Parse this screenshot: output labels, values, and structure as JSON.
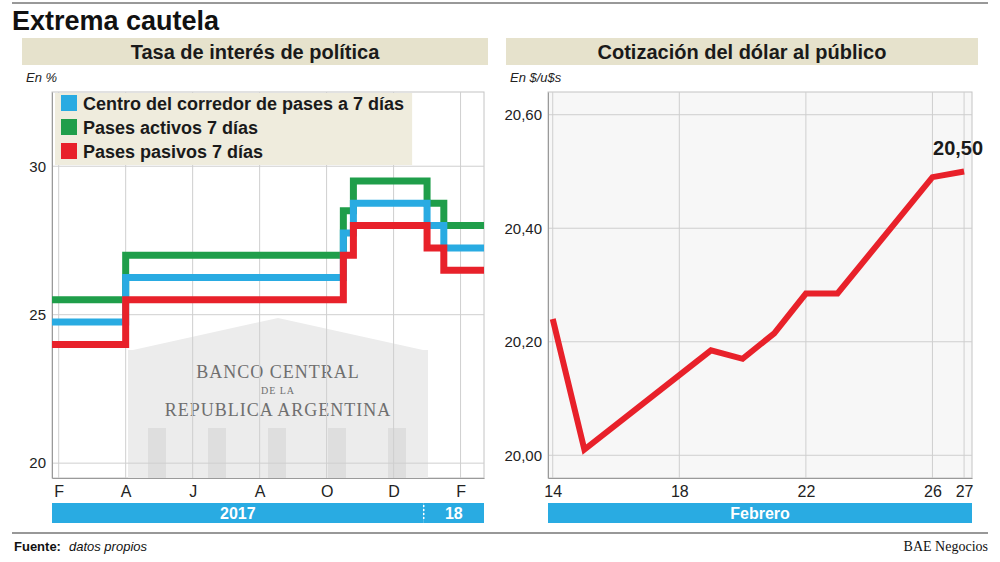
{
  "title": "Extrema cautela",
  "chart_data": [
    {
      "type": "line",
      "title": "Tasa de interés de política",
      "ylabel": "En %",
      "line_style": "step",
      "x": [
        -0.2,
        2,
        8.5,
        8.8,
        11.0,
        11.5,
        12.7
      ],
      "xlim": [
        -0.2,
        12.7
      ],
      "xticks": [
        {
          "value": 0,
          "label": "F"
        },
        {
          "value": 2,
          "label": "A"
        },
        {
          "value": 4,
          "label": "J"
        },
        {
          "value": 6,
          "label": "A"
        },
        {
          "value": 8,
          "label": "O"
        },
        {
          "value": 10,
          "label": "D"
        },
        {
          "value": 12,
          "label": "F"
        }
      ],
      "x_groups": [
        {
          "label": "2017",
          "start": -0.2,
          "end": 10.9
        },
        {
          "label": "18",
          "start": 10.9,
          "end": 12.7
        }
      ],
      "ylim": [
        19.5,
        32.5
      ],
      "yticks": [
        20,
        25,
        30
      ],
      "grid": true,
      "legend": "upper left",
      "background_text": [
        "BANCO CENTRAL",
        "DE LA",
        "REPUBLICA ARGENTINA"
      ],
      "series": [
        {
          "name": "Centro del corredor de pases a 7 días",
          "color": "#29abe2",
          "values": [
            24.75,
            26.25,
            27.75,
            28.75,
            28.0,
            27.25,
            27.25
          ]
        },
        {
          "name": "Pases activos 7 días",
          "color": "#1f9e4a",
          "values": [
            25.5,
            27.0,
            28.5,
            29.5,
            28.75,
            28.0,
            28.0
          ]
        },
        {
          "name": "Pases pasivos 7 días",
          "color": "#e8212a",
          "values": [
            24.0,
            25.5,
            27.0,
            28.0,
            27.25,
            26.5,
            26.5
          ]
        }
      ]
    },
    {
      "type": "line",
      "title": "Cotización del dólar al público",
      "ylabel": "En $/u$s",
      "line_style": "solid",
      "x": [
        14,
        15,
        19,
        20,
        21,
        22,
        23,
        26,
        27
      ],
      "xlim": [
        13.85,
        27.25
      ],
      "xticks": [
        14,
        18,
        22,
        26,
        27
      ],
      "x_groups": [
        {
          "label": "Febrero",
          "start": 13.85,
          "end": 27.25
        }
      ],
      "ylim": [
        19.96,
        20.64
      ],
      "yticks": [
        {
          "value": 20.0,
          "label": "20,00"
        },
        {
          "value": 20.2,
          "label": "20,20"
        },
        {
          "value": 20.4,
          "label": "20,40"
        },
        {
          "value": 20.6,
          "label": "20,60"
        }
      ],
      "grid": true,
      "series": [
        {
          "color": "#e8212a",
          "values": [
            20.24,
            20.01,
            20.185,
            20.17,
            20.215,
            20.285,
            20.285,
            20.49,
            20.5
          ],
          "value_labels": [
            null,
            null,
            null,
            null,
            null,
            null,
            null,
            null,
            "20,50"
          ]
        }
      ]
    }
  ],
  "footer": {
    "source_label": "Fuente:",
    "source": "datos propios",
    "credit": "BAE Negocios"
  }
}
